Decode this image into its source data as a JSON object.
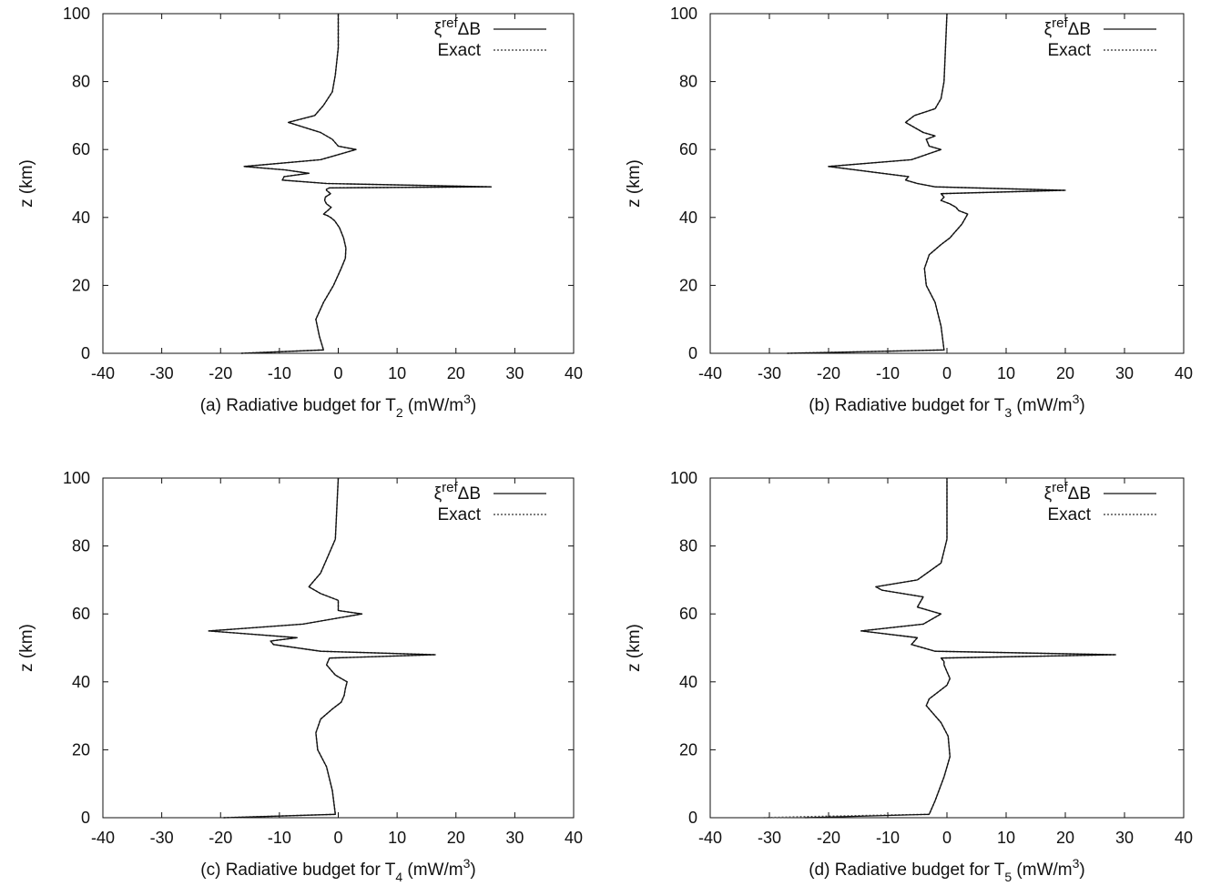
{
  "chart_data": [
    {
      "panel": "a",
      "type": "line",
      "xlabel": {
        "main": "(a) Radiative budget for T",
        "sub": "2",
        "unit": " (mW/m",
        "sup": "3",
        "close": ")"
      },
      "ylabel": "z (km)",
      "xlim": [
        -40,
        40
      ],
      "ylim": [
        0,
        100
      ],
      "xticks": [
        "-40",
        "-30",
        "-20",
        "-10",
        "0",
        "10",
        "20",
        "30",
        "40"
      ],
      "yticks": [
        "0",
        "20",
        "40",
        "60",
        "80",
        "100"
      ],
      "legend_position": "top-right",
      "series": [
        {
          "name": "ξrefΔB",
          "style": "solid",
          "x": [
            -16.5,
            -2.5,
            -3.2,
            -3.8,
            -2.5,
            -0.8,
            0.5,
            1.2,
            1.3,
            0.9,
            0.2,
            -0.6,
            -1.3,
            -1.8,
            -2.5,
            -1.8,
            -1.2,
            -2.0,
            -2.3,
            -2.2,
            -1.3,
            -2.0,
            -2.0,
            -1.5,
            26.0,
            -2.0,
            -9.5,
            -9.2,
            -5.0,
            -9.0,
            -16.0,
            -3.0,
            3.0,
            0.0,
            -1.0,
            -3.0,
            -8.5,
            -4.0,
            -2.5,
            -1.0,
            -0.5,
            0.0,
            0.0
          ],
          "y": [
            0,
            1,
            5,
            10,
            15,
            20,
            25,
            28,
            31,
            34,
            37,
            39,
            40,
            40.5,
            41,
            42,
            43,
            44,
            45,
            46,
            47,
            48,
            48.3,
            48.7,
            49,
            50,
            51,
            52,
            53,
            54,
            55,
            57,
            60,
            61,
            63,
            65,
            68,
            70,
            73,
            77,
            82,
            90,
            100
          ]
        },
        {
          "name": "Exact",
          "style": "dotted",
          "x": [
            -16.5,
            -2.5,
            -3.2,
            -3.8,
            -2.5,
            -0.8,
            0.5,
            1.2,
            1.3,
            0.9,
            0.2,
            -0.6,
            -1.3,
            -1.8,
            -2.5,
            -1.8,
            -1.2,
            -2.0,
            -2.3,
            -2.2,
            -1.3,
            -2.0,
            -2.0,
            -1.5,
            26.0,
            -2.0,
            -9.5,
            -9.2,
            -5.0,
            -9.0,
            -16.0,
            -3.0,
            3.0,
            0.0,
            -1.0,
            -3.0,
            -8.5,
            -4.0,
            -2.5,
            -1.0,
            -0.5,
            0.0,
            0.0
          ],
          "y": [
            0,
            1,
            5,
            10,
            15,
            20,
            25,
            28,
            31,
            34,
            37,
            39,
            40,
            40.5,
            41,
            42,
            43,
            44,
            45,
            46,
            47,
            48,
            48.3,
            48.7,
            49,
            50,
            51,
            52,
            53,
            54,
            55,
            57,
            60,
            61,
            63,
            65,
            68,
            70,
            73,
            77,
            82,
            90,
            100
          ]
        }
      ]
    },
    {
      "panel": "b",
      "type": "line",
      "xlabel": {
        "main": "(b) Radiative budget for T",
        "sub": "3",
        "unit": " (mW/m",
        "sup": "3",
        "close": ")"
      },
      "ylabel": "z (km)",
      "xlim": [
        -40,
        40
      ],
      "ylim": [
        0,
        100
      ],
      "xticks": [
        "-40",
        "-30",
        "-20",
        "-10",
        "0",
        "10",
        "20",
        "30",
        "40"
      ],
      "yticks": [
        "0",
        "20",
        "40",
        "60",
        "80",
        "100"
      ],
      "legend_position": "top-right",
      "series": [
        {
          "name": "ξrefΔB",
          "style": "solid",
          "x": [
            -27.0,
            -0.5,
            -1.0,
            -2.0,
            -3.5,
            -3.8,
            -3.0,
            -1.0,
            0.5,
            1.5,
            2.5,
            3.5,
            2.0,
            1.5,
            0.5,
            -1.0,
            -0.5,
            -1.0,
            20.0,
            -2.0,
            -5.0,
            -7.0,
            -6.5,
            -20.0,
            -6.0,
            -1.0,
            -3.0,
            -3.5,
            -2.0,
            -4.0,
            -7.0,
            -5.5,
            -2.0,
            -1.0,
            -0.5,
            0.0
          ],
          "y": [
            0,
            1,
            8,
            15,
            20,
            25,
            29,
            32,
            34,
            36,
            38,
            41,
            42,
            43,
            44,
            45,
            46,
            47,
            48,
            49,
            50,
            51,
            52,
            55,
            57,
            60,
            61,
            63,
            64,
            65,
            68,
            70,
            72,
            75,
            80,
            100
          ]
        },
        {
          "name": "Exact",
          "style": "dotted",
          "x": [
            -27.0,
            -0.5,
            -1.0,
            -2.0,
            -3.5,
            -3.8,
            -3.0,
            -1.0,
            0.5,
            1.5,
            2.5,
            3.5,
            2.0,
            1.5,
            0.5,
            -1.0,
            -0.5,
            -1.0,
            20.0,
            -2.0,
            -5.0,
            -7.0,
            -6.5,
            -20.0,
            -6.0,
            -1.0,
            -3.0,
            -3.5,
            -2.0,
            -4.0,
            -7.0,
            -5.5,
            -2.0,
            -1.0,
            -0.5,
            0.0
          ],
          "y": [
            0,
            1,
            8,
            15,
            20,
            25,
            29,
            32,
            34,
            36,
            38,
            41,
            42,
            43,
            44,
            45,
            46,
            47,
            48,
            49,
            50,
            51,
            52,
            55,
            57,
            60,
            61,
            63,
            64,
            65,
            68,
            70,
            72,
            75,
            80,
            100
          ]
        }
      ]
    },
    {
      "panel": "c",
      "type": "line",
      "xlabel": {
        "main": "(c) Radiative budget for T",
        "sub": "4",
        "unit": " (mW/m",
        "sup": "3",
        "close": ")"
      },
      "ylabel": "z (km)",
      "xlim": [
        -40,
        40
      ],
      "ylim": [
        0,
        100
      ],
      "xticks": [
        "-40",
        "-30",
        "-20",
        "-10",
        "0",
        "10",
        "20",
        "30",
        "40"
      ],
      "yticks": [
        "0",
        "20",
        "40",
        "60",
        "80",
        "100"
      ],
      "legend_position": "top-right",
      "series": [
        {
          "name": "ξrefΔB",
          "style": "solid",
          "x": [
            -19.5,
            -0.5,
            -1.0,
            -2.0,
            -3.5,
            -3.8,
            -3.0,
            -1.0,
            0.5,
            1.0,
            1.2,
            1.5,
            0.5,
            -0.5,
            -1.0,
            -2.0,
            -1.5,
            16.5,
            -3.0,
            -11.0,
            -11.5,
            -7.0,
            -22.0,
            -6.0,
            4.0,
            0.0,
            0.0,
            -3.0,
            -5.0,
            -3.0,
            -2.0,
            -0.5,
            0.0
          ],
          "y": [
            0,
            1,
            8,
            15,
            20,
            25,
            29,
            32,
            34,
            36,
            38,
            40,
            41,
            42,
            43,
            45,
            47,
            48,
            49,
            51,
            52,
            53,
            55,
            57,
            60,
            61,
            64,
            66,
            68,
            72,
            76,
            82,
            100
          ]
        },
        {
          "name": "Exact",
          "style": "dotted",
          "x": [
            -19.5,
            -0.5,
            -1.0,
            -2.0,
            -3.5,
            -3.8,
            -3.0,
            -1.0,
            0.5,
            1.0,
            1.2,
            1.5,
            0.5,
            -0.5,
            -1.0,
            -2.0,
            -1.5,
            16.5,
            -3.0,
            -11.0,
            -11.5,
            -7.0,
            -22.0,
            -6.0,
            4.0,
            0.0,
            0.0,
            -3.0,
            -5.0,
            -3.0,
            -2.0,
            -0.5,
            0.0
          ],
          "y": [
            0,
            1,
            8,
            15,
            20,
            25,
            29,
            32,
            34,
            36,
            38,
            40,
            41,
            42,
            43,
            45,
            47,
            48,
            49,
            51,
            52,
            53,
            55,
            57,
            60,
            61,
            64,
            66,
            68,
            72,
            76,
            82,
            100
          ]
        }
      ]
    },
    {
      "panel": "d",
      "type": "line",
      "xlabel": {
        "main": "(d) Radiative budget for T",
        "sub": "5",
        "unit": " (mW/m",
        "sup": "3",
        "close": ")"
      },
      "ylabel": "z (km)",
      "xlim": [
        -40,
        40
      ],
      "ylim": [
        0,
        100
      ],
      "xticks": [
        "-40",
        "-30",
        "-20",
        "-10",
        "0",
        "10",
        "20",
        "30",
        "40"
      ],
      "yticks": [
        "0",
        "20",
        "40",
        "60",
        "80",
        "100"
      ],
      "legend_position": "top-right",
      "series": [
        {
          "name": "ξrefΔB",
          "style": "solid",
          "x": [
            -24.0,
            -3.0,
            -2.0,
            -0.5,
            0.5,
            0.2,
            -1.0,
            -2.5,
            -3.5,
            -3.0,
            -1.5,
            0.0,
            0.5,
            0.0,
            -0.5,
            -0.5,
            -1.0,
            28.5,
            -2.0,
            -6.0,
            -5.0,
            -14.5,
            -4.0,
            -1.0,
            -5.0,
            -4.0,
            -11.0,
            -12.0,
            -5.0,
            -1.0,
            0.0,
            0.0
          ],
          "y": [
            0,
            1,
            5,
            12,
            18,
            24,
            28,
            31,
            33,
            35,
            37,
            39,
            41,
            43,
            45,
            46,
            47,
            48,
            49,
            51,
            53,
            55,
            57,
            60,
            62,
            65,
            67,
            68,
            70,
            75,
            82,
            100
          ]
        },
        {
          "name": "Exact",
          "style": "dotted",
          "x": [
            -31.0,
            -24.0,
            -3.0,
            -2.0,
            -0.5,
            0.5,
            0.2,
            -1.0,
            -2.5,
            -3.5,
            -3.0,
            -1.5,
            0.0,
            0.5,
            0.0,
            -0.5,
            -0.5,
            -1.0,
            28.5,
            -2.0,
            -6.0,
            -5.0,
            -14.5,
            -4.0,
            -1.0,
            -5.0,
            -4.0,
            -11.0,
            -12.0,
            -5.0,
            -1.0,
            0.0,
            0.0
          ],
          "y": [
            0,
            0.3,
            1,
            5,
            12,
            18,
            24,
            28,
            31,
            33,
            35,
            37,
            39,
            41,
            43,
            45,
            46,
            47,
            48,
            49,
            51,
            53,
            55,
            57,
            60,
            62,
            65,
            67,
            68,
            70,
            75,
            82,
            100
          ]
        }
      ]
    }
  ]
}
